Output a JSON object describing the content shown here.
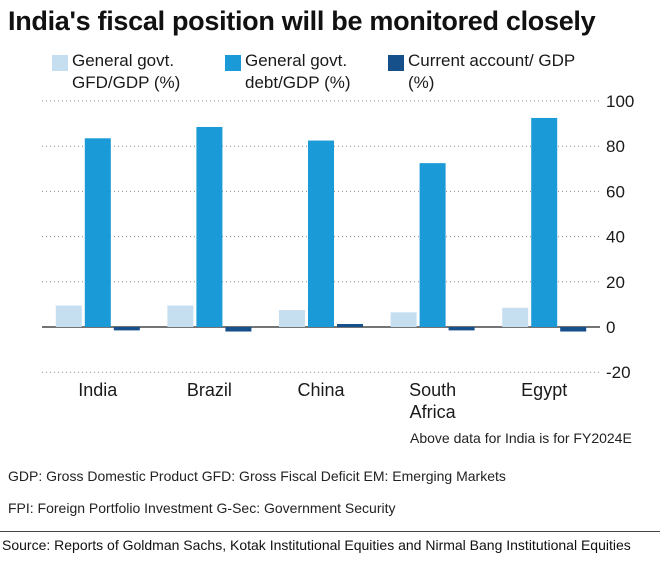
{
  "title": "India's fiscal position will be monitored closely",
  "chart_data": {
    "type": "bar",
    "categories": [
      "India",
      "Brazil",
      "China",
      "South Africa",
      "Egypt"
    ],
    "series": [
      {
        "name": "General govt. GFD/GDP (%)",
        "color": "#c5dff0",
        "values": [
          9.5,
          9.5,
          7.5,
          6.5,
          8.5
        ]
      },
      {
        "name": "General govt. debt/GDP (%)",
        "color": "#1a9ad6",
        "values": [
          83.5,
          88.5,
          82.5,
          72.5,
          92.5
        ]
      },
      {
        "name": "Current account/ GDP (%)",
        "color": "#15508a",
        "values": [
          -1.5,
          -2,
          1,
          -1.5,
          -2
        ]
      }
    ],
    "yticks": [
      "100",
      "80",
      "60",
      "40",
      "20",
      "0",
      "-20"
    ],
    "ylim": [
      -20,
      100
    ],
    "y_axis_position": "right",
    "grid": "dotted horizontal",
    "legend": "top"
  },
  "note": "Above data for India is for FY2024E",
  "glossary": {
    "line1": "GDP: Gross Domestic Product   GFD: Gross Fiscal Deficit   EM: Emerging Markets",
    "line2": "FPI: Foreign Portfolio Investment    G-Sec: Government Security"
  },
  "source": "Source: Reports of Goldman Sachs, Kotak Institutional Equities and Nirmal Bang Institutional Equities"
}
